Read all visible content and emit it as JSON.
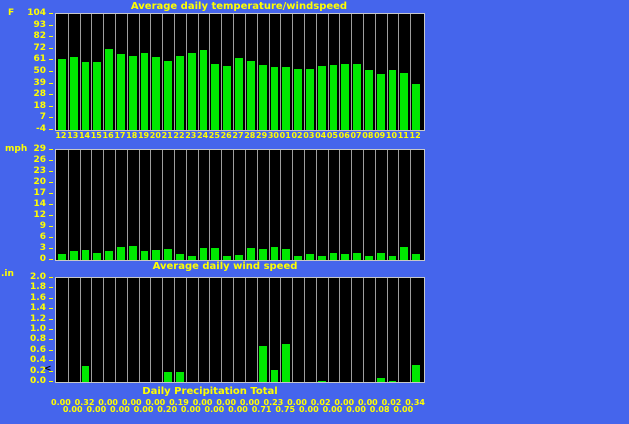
{
  "window": {
    "background_color": "#4565EC"
  },
  "colors": {
    "bar_green": "#00E800",
    "plot_background": "#000000",
    "grid_line": "#9E9E9E",
    "plot_border": "#C8C8C8",
    "label_yellow": "#FFFF00"
  },
  "chart_data": [
    {
      "type": "bar",
      "id": "temperature",
      "title": "Average daily temperature/windspeed",
      "ylabel": "F",
      "ylim": [
        -4,
        104
      ],
      "yticks": [
        "104",
        "93",
        "82",
        "72",
        "61",
        "50",
        "39",
        "28",
        "18",
        "7",
        "-4"
      ],
      "legend_position": "none",
      "grid": "vertical-column-separators",
      "categories": [
        "12",
        "13",
        "14",
        "15",
        "16",
        "17",
        "18",
        "19",
        "20",
        "21",
        "22",
        "23",
        "24",
        "25",
        "26",
        "27",
        "28",
        "29",
        "30",
        "01",
        "02",
        "03",
        "04",
        "05",
        "06",
        "07",
        "08",
        "09",
        "10",
        "11",
        "12"
      ],
      "values": [
        63,
        65,
        60,
        60,
        73,
        68,
        66,
        69,
        65,
        61,
        66,
        69,
        72,
        59,
        57,
        64,
        61,
        58,
        56,
        56,
        54,
        54,
        57,
        58,
        59,
        59,
        53,
        49,
        53,
        50,
        40
      ]
    },
    {
      "type": "bar",
      "id": "wind-speed",
      "title": "Average daily wind speed",
      "ylabel": "mph",
      "ylim": [
        0,
        29
      ],
      "yticks": [
        "29",
        "26",
        "23",
        "20",
        "17",
        "14",
        "12",
        "9",
        "6",
        "3",
        "0"
      ],
      "legend_position": "none",
      "grid": "vertical-column-separators",
      "categories": [
        "12",
        "13",
        "14",
        "15",
        "16",
        "17",
        "18",
        "19",
        "20",
        "21",
        "22",
        "23",
        "24",
        "25",
        "26",
        "27",
        "28",
        "29",
        "30",
        "01",
        "02",
        "03",
        "04",
        "05",
        "06",
        "07",
        "08",
        "09",
        "10",
        "11",
        "12"
      ],
      "values": [
        1.6,
        2.3,
        2.6,
        1.9,
        2.3,
        3.5,
        3.7,
        2.3,
        2.8,
        3.0,
        1.6,
        1.2,
        3.2,
        3.3,
        1.0,
        1.4,
        3.3,
        2.9,
        3.5,
        2.9,
        1.1,
        1.5,
        1.1,
        1.8,
        1.5,
        1.8,
        1.1,
        1.8,
        1.1,
        3.5,
        1.5
      ]
    },
    {
      "type": "bar",
      "id": "precipitation",
      "title": "Daily Precipitation Total",
      "ylabel": ".in",
      "ylim": [
        0,
        2.0
      ],
      "yticks": [
        "2.0",
        "1.8",
        "1.6",
        "1.4",
        "1.2",
        "1.0",
        "0.8",
        "0.6",
        "0.4",
        "0.2",
        "0.0"
      ],
      "legend_position": "none",
      "grid": "vertical-column-separators",
      "axis_marker": "<",
      "categories": [
        "12",
        "13",
        "14",
        "15",
        "16",
        "17",
        "18",
        "19",
        "20",
        "21",
        "22",
        "23",
        "24",
        "25",
        "26",
        "27",
        "28",
        "29",
        "30",
        "01",
        "02",
        "03",
        "04",
        "05",
        "06",
        "07",
        "08",
        "09",
        "10",
        "11",
        "12"
      ],
      "values": [
        0.0,
        0.0,
        0.32,
        0.0,
        0.0,
        0.0,
        0.0,
        0.0,
        0.0,
        0.2,
        0.19,
        0.0,
        0.0,
        0.0,
        0.0,
        0.0,
        0.0,
        0.71,
        0.23,
        0.75,
        0.0,
        0.0,
        0.02,
        0.0,
        0.0,
        0.0,
        0.0,
        0.08,
        0.02,
        0.0,
        0.34
      ],
      "value_labels": [
        "0.00",
        "0.00",
        "0.32",
        "0.00",
        "0.00",
        "0.00",
        "0.00",
        "0.00",
        "0.00",
        "0.20",
        "0.19",
        "0.00",
        "0.00",
        "0.00",
        "0.00",
        "0.00",
        "0.00",
        "0.71",
        "0.23",
        "0.75",
        "0.00",
        "0.00",
        "0.02",
        "0.00",
        "0.00",
        "0.00",
        "0.00",
        "0.08",
        "0.02",
        "0.00",
        "0.34"
      ]
    }
  ]
}
